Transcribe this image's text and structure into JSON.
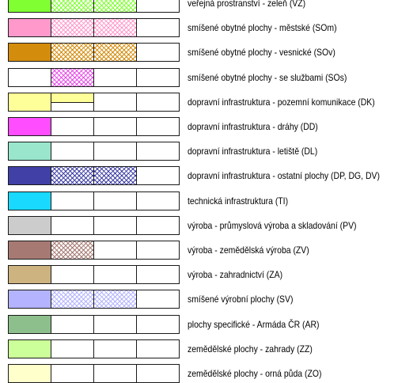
{
  "legend": {
    "rows": [
      {
        "label": "veřejná prostranství - zeleň (VZ)",
        "color": "#80ff33",
        "swatches": [
          "solid",
          "hatch",
          "hatch",
          "empty"
        ]
      },
      {
        "label": "smíšené obytné plochy - městské (SOm)",
        "color": "#ff99cc",
        "swatches": [
          "solid",
          "hatch",
          "hatch",
          "empty"
        ]
      },
      {
        "label": "smíšené obytné plochy - vesnické (SOv)",
        "color": "#d48c0d",
        "swatches": [
          "solid",
          "hatch",
          "hatch",
          "empty"
        ]
      },
      {
        "label": "smíšené obytné plochy - se službami (SOs)",
        "color": "#e64de6",
        "swatches": [
          "empty",
          "hatch",
          "empty",
          "empty"
        ]
      },
      {
        "label": "dopravní infrastruktura - pozemní komunikace (DK)",
        "color": "#ffff99",
        "swatches": [
          "solid",
          "upper",
          "empty",
          "empty"
        ]
      },
      {
        "label": "dopravní infrastruktura - dráhy (DD)",
        "color": "#ff4dff",
        "swatches": [
          "solid",
          "empty",
          "empty",
          "empty"
        ]
      },
      {
        "label": "dopravní infrastruktura - letiště (DL)",
        "color": "#99e6cc",
        "swatches": [
          "solid",
          "empty",
          "empty",
          "empty"
        ]
      },
      {
        "label": "dopravní infrastruktura - ostatní plochy (DP, DG, DV)",
        "color": "#4040a6",
        "swatches": [
          "solid",
          "hatch",
          "hatch",
          "empty"
        ]
      },
      {
        "label": "technická infrastruktura (TI)",
        "color": "#1ad9ff",
        "swatches": [
          "solid",
          "empty",
          "empty",
          "empty"
        ]
      },
      {
        "label": "výroba - průmyslová výroba a skladování (PV)",
        "color": "#cccccc",
        "swatches": [
          "solid",
          "empty",
          "empty",
          "empty"
        ]
      },
      {
        "label": "výroba - zemědělská výroba (ZV)",
        "color": "#a67a73",
        "swatches": [
          "solid",
          "hatch",
          "empty",
          "empty"
        ]
      },
      {
        "label": "výroba - zahradnictví (ZA)",
        "color": "#ccb380",
        "swatches": [
          "solid",
          "empty",
          "empty",
          "empty"
        ]
      },
      {
        "label": "smíšené výrobní plochy (SV)",
        "color": "#b3b3ff",
        "swatches": [
          "solid",
          "hatch",
          "hatch",
          "empty"
        ]
      },
      {
        "label": "plochy specifické - Armáda ČR (AR)",
        "color": "#8cbf8c",
        "swatches": [
          "solid",
          "empty",
          "empty",
          "empty"
        ]
      },
      {
        "label": "zemědělské plochy - zahrady (ZZ)",
        "color": "#ccff99",
        "swatches": [
          "solid",
          "empty",
          "empty",
          "empty"
        ]
      },
      {
        "label": "zemědělské plochy - orná půda (ZO)",
        "color": "#ffffcc",
        "swatches": [
          "solid",
          "empty",
          "empty",
          "empty"
        ]
      }
    ]
  }
}
